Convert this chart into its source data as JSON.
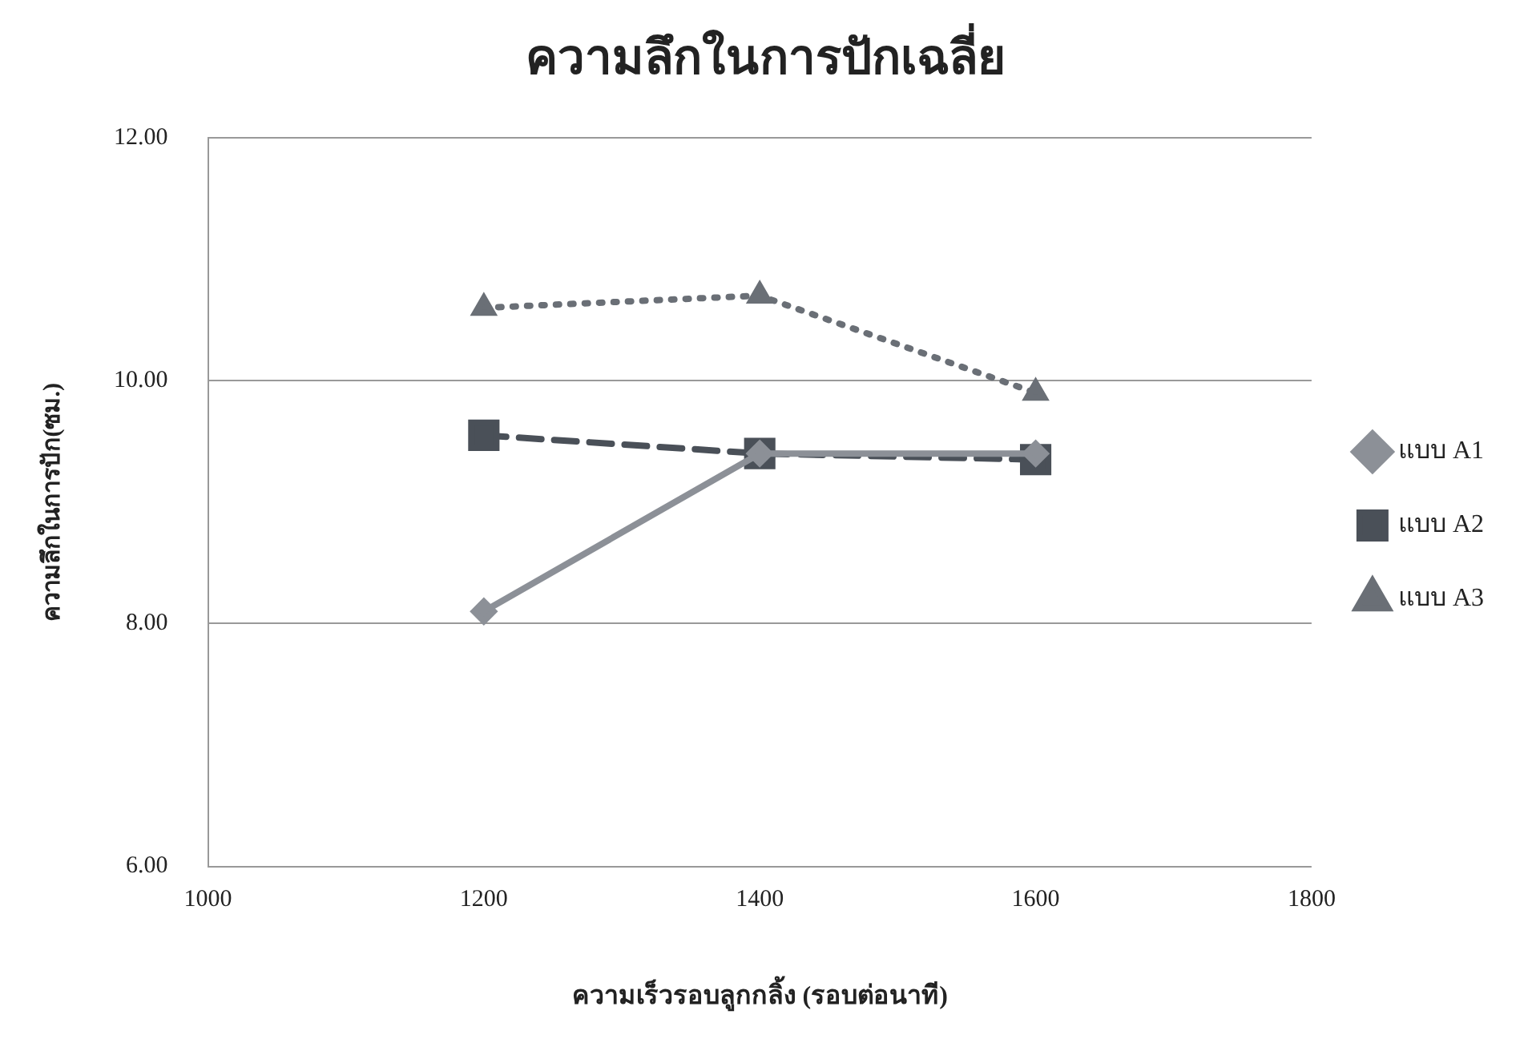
{
  "chart_data": {
    "type": "line",
    "title": "ความลึกในการปักเฉลี่ย",
    "xlabel": "ความเร็วรอบลูกกลิ้ง (รอบต่อนาที)",
    "ylabel": "ความลึกในการปัก(ซม.)",
    "x": [
      1200,
      1400,
      1600
    ],
    "series": [
      {
        "name": "แบบ A1",
        "color": "#8c9097",
        "values": [
          8.1,
          9.4,
          9.4
        ],
        "marker": "diamond",
        "line_style": "solid"
      },
      {
        "name": "แบบ A2",
        "color": "#4a5058",
        "values": [
          9.55,
          9.4,
          9.35
        ],
        "marker": "square",
        "line_style": "dashed"
      },
      {
        "name": "แบบ A3",
        "color": "#6a6f76",
        "values": [
          10.6,
          10.7,
          9.9
        ],
        "marker": "triangle",
        "line_style": "dotted"
      }
    ],
    "xlim": [
      1000,
      1800
    ],
    "xticks": [
      1000,
      1200,
      1400,
      1600,
      1800
    ],
    "ylim": [
      6,
      12
    ],
    "yticks": [
      {
        "value": 6,
        "label": "6.00"
      },
      {
        "value": 8,
        "label": "8.00"
      },
      {
        "value": 10,
        "label": "10.00"
      },
      {
        "value": 12,
        "label": "12.00"
      }
    ],
    "grid": "y",
    "legend": "right"
  }
}
